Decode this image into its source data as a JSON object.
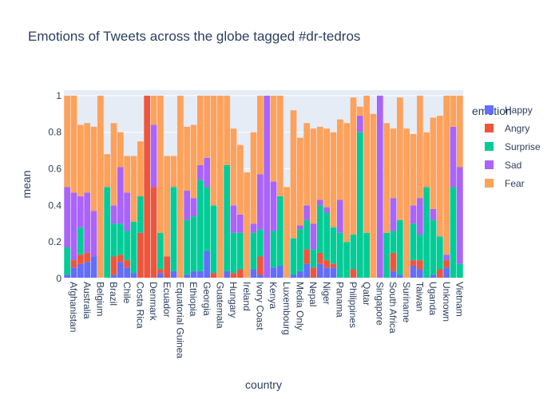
{
  "chart_data": {
    "type": "bar",
    "barmode": "stack",
    "title": "Emotions of Tweets across the globe tagged #dr-tedros",
    "xlabel": "country",
    "ylabel": "mean",
    "ylim": [
      0,
      1.03
    ],
    "yticks": [
      "0",
      "0.2",
      "0.4",
      "0.6",
      "0.8",
      "1"
    ],
    "ytick_values": [
      0,
      0.2,
      0.4,
      0.6,
      0.8,
      1
    ],
    "grid": true,
    "legend": {
      "title": "emotion",
      "position": "right"
    },
    "categories": [
      "Afghanistan",
      "c2",
      "Australia",
      "c4",
      "Belgium",
      "c6",
      "Brazil",
      "c8",
      "Chile",
      "c10",
      "Costa Rica",
      "c12",
      "Denmark",
      "c14",
      "Ecuador",
      "c16",
      "Equatorial Guinea",
      "c18",
      "Ethiopia",
      "c20",
      "Georgia",
      "c22",
      "Guatemala",
      "c24",
      "Hungary",
      "c26",
      "Ireland",
      "c28",
      "Ivory Coast",
      "c30",
      "Kenya",
      "c32",
      "Luxembourg",
      "c34",
      "Media Only",
      "c36",
      "Nepal",
      "c38",
      "Niger",
      "c40",
      "Panama",
      "c42",
      "Philippines",
      "c44",
      "Qatar",
      "c46",
      "Singapore",
      "c48",
      "South Africa",
      "c50",
      "Suriname",
      "c52",
      "Taiwan",
      "c54",
      "Uganda",
      "c56",
      "Unknown",
      "c58",
      "Vietnam",
      "c60"
    ],
    "visible_tick_labels": [
      "Afghanistan",
      "Australia",
      "Belgium",
      "Brazil",
      "Chile",
      "Costa Rica",
      "Denmark",
      "Ecuador",
      "Equatorial Guinea",
      "Ethiopia",
      "Georgia",
      "Guatemala",
      "Hungary",
      "Ireland",
      "Ivory Coast",
      "Kenya",
      "Luxembourg",
      "Media Only",
      "Nepal",
      "Niger",
      "Panama",
      "Philippines",
      "Qatar",
      "Singapore",
      "South Africa",
      "Suriname",
      "Taiwan",
      "Uganda",
      "Unknown",
      "Vietnam"
    ],
    "series": [
      {
        "name": "Happy",
        "color": "#636efa",
        "values": [
          0.02,
          0.06,
          0.08,
          0.09,
          0.12,
          0.0,
          0.0,
          0.02,
          0.09,
          0.06,
          0.03,
          0.0,
          0.0,
          0.0,
          0.03,
          0.0,
          0.04,
          0.0,
          0.02,
          0.04,
          0.04,
          0.15,
          0.0,
          0.0,
          0.04,
          0.0,
          0.0,
          0.0,
          0.05,
          0.02,
          0.0,
          0.06,
          0.07,
          0.0,
          0.02,
          0.04,
          0.08,
          0.0,
          0.08,
          0.06,
          0.06,
          0.0,
          0.0,
          0.0,
          0.0,
          0.0,
          0.0,
          0.0,
          0.0,
          0.04,
          0.02,
          0.0,
          0.07,
          0.05,
          0.0,
          0.02,
          0.0,
          0.06,
          0.0,
          0.0
        ]
      },
      {
        "name": "Angry",
        "color": "#ef553b",
        "values": [
          0.0,
          0.04,
          0.05,
          0.05,
          0.0,
          0.0,
          0.0,
          0.1,
          0.04,
          0.04,
          0.0,
          0.25,
          1.0,
          0.5,
          0.02,
          0.12,
          0.0,
          0.0,
          0.0,
          0.0,
          0.0,
          0.0,
          0.03,
          0.0,
          0.0,
          0.03,
          0.05,
          0.0,
          0.0,
          0.1,
          0.0,
          0.0,
          0.0,
          0.0,
          0.0,
          0.0,
          0.08,
          0.06,
          0.06,
          0.04,
          0.02,
          0.0,
          0.0,
          0.05,
          0.0,
          0.0,
          0.0,
          0.0,
          0.0,
          0.1,
          0.0,
          0.0,
          0.03,
          0.05,
          0.0,
          0.0,
          0.05,
          0.04,
          0.0,
          0.0
        ]
      },
      {
        "name": "Surprise",
        "color": "#00cc96",
        "values": [
          0.15,
          0.0,
          0.15,
          0.0,
          0.0,
          0.0,
          0.5,
          0.18,
          0.17,
          0.16,
          0.28,
          0.2,
          0.0,
          0.0,
          0.2,
          0.0,
          0.46,
          0.0,
          0.3,
          0.3,
          0.5,
          0.35,
          0.37,
          0.0,
          0.58,
          0.22,
          0.2,
          0.0,
          0.2,
          0.15,
          0.0,
          0.2,
          0.38,
          0.0,
          0.2,
          0.23,
          0.16,
          0.1,
          0.26,
          0.26,
          0.2,
          0.25,
          0.2,
          0.19,
          0.8,
          0.25,
          0.0,
          0.0,
          0.25,
          0.12,
          0.3,
          0.0,
          0.2,
          0.14,
          0.5,
          0.3,
          0.18,
          0.0,
          0.5,
          0.08
        ]
      },
      {
        "name": "Sad",
        "color": "#ab63fa",
        "values": [
          0.33,
          0.37,
          0.17,
          0.33,
          0.25,
          0.0,
          0.0,
          0.1,
          0.31,
          0.21,
          0.0,
          0.0,
          0.0,
          0.34,
          0.0,
          0.0,
          0.0,
          0.0,
          0.16,
          0.1,
          0.08,
          0.16,
          0.0,
          0.0,
          0.0,
          0.15,
          0.1,
          0.0,
          0.05,
          0.3,
          1.0,
          0.27,
          0.0,
          0.0,
          0.0,
          0.02,
          0.08,
          0.14,
          0.03,
          0.03,
          0.0,
          0.18,
          0.0,
          0.0,
          0.09,
          0.0,
          0.0,
          1.0,
          0.0,
          0.18,
          0.0,
          0.0,
          0.1,
          0.2,
          0.0,
          0.06,
          0.0,
          0.03,
          0.33,
          0.53
        ]
      },
      {
        "name": "Fear",
        "color": "#fea15a",
        "values": [
          0.5,
          0.53,
          0.39,
          0.38,
          0.46,
          1.0,
          0.18,
          0.45,
          0.19,
          0.2,
          0.36,
          0.3,
          0.0,
          0.16,
          0.75,
          0.55,
          0.17,
          1.0,
          0.35,
          0.4,
          0.38,
          0.34,
          0.6,
          1.0,
          0.38,
          0.42,
          0.38,
          0.58,
          0.5,
          0.43,
          0.0,
          0.47,
          0.55,
          0.5,
          0.7,
          0.48,
          0.45,
          0.52,
          0.4,
          0.43,
          0.52,
          0.44,
          0.65,
          0.75,
          0.05,
          0.75,
          0.9,
          0.0,
          0.6,
          0.38,
          0.67,
          0.82,
          0.39,
          0.56,
          0.3,
          0.5,
          0.66,
          0.87,
          0.17,
          0.39
        ]
      }
    ]
  }
}
